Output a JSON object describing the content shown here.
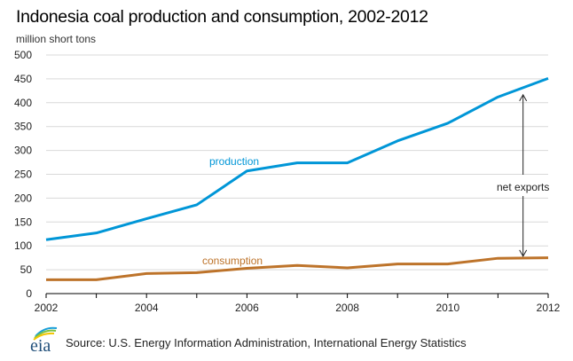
{
  "chart_data": {
    "type": "line",
    "title": "Indonesia coal production and consumption, 2002-2012",
    "ylabel": "million short tons",
    "xlabel": "",
    "x": [
      2002,
      2003,
      2004,
      2005,
      2006,
      2007,
      2008,
      2009,
      2010,
      2011,
      2012
    ],
    "xlim": [
      2002,
      2012
    ],
    "ylim": [
      0,
      500
    ],
    "xticks": [
      2002,
      2004,
      2006,
      2008,
      2010,
      2012
    ],
    "yticks": [
      0,
      50,
      100,
      150,
      200,
      250,
      300,
      350,
      400,
      450,
      500
    ],
    "grid": true,
    "legend": "inline labels",
    "series": [
      {
        "name": "production",
        "color": "#0096D7",
        "values": [
          113,
          127,
          157,
          186,
          257,
          274,
          274,
          320,
          357,
          412,
          451
        ]
      },
      {
        "name": "consumption",
        "color": "#BD732A",
        "values": [
          29,
          29,
          42,
          44,
          53,
          59,
          54,
          62,
          62,
          74,
          75
        ]
      }
    ],
    "annotations": [
      {
        "text": "net exports",
        "x": 2011.5,
        "from_series": "production",
        "to_series": "consumption"
      }
    ]
  },
  "footer": {
    "logo_text": "eia",
    "source": "Source: U.S. Energy Information  Administration, International  Energy Statistics"
  }
}
